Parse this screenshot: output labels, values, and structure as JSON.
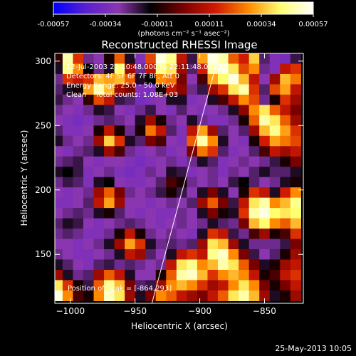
{
  "colorbar": {
    "ticks": [
      "-0.00057",
      "-0.00034",
      "-0.00011",
      "0.00011",
      "0.00034",
      "0.00057"
    ],
    "units": "(photons cm⁻² s⁻¹ asec⁻²)",
    "colors": [
      "#0000ff",
      "#5a1fd1",
      "#8a36b0",
      "#000000",
      "#7a0000",
      "#d21a00",
      "#ff8a00",
      "#ffff70",
      "#ffffff"
    ]
  },
  "chart_data": {
    "type": "heatmap",
    "title": "Reconstructed RHESSI Image",
    "xlabel": "Heliocentric X (arcsec)",
    "ylabel": "Heliocentric Y (arcsec)",
    "xlim": [
      -1012,
      -820
    ],
    "ylim": [
      112,
      306
    ],
    "x_ticks": [
      -1000,
      -950,
      -900,
      -850
    ],
    "y_ticks": [
      150,
      200,
      250,
      300
    ],
    "clim": [
      -0.00057,
      0.00057
    ],
    "annotations": [
      "12-Jul-2003 22:10:48.000 to 22:11:48.000",
      "Detectors: 4F 5F 6F 7F 8F, Att 0",
      "Energy Range: 25.0 - 50.0 keV",
      "Clean    Total counts: 1.08E+03"
    ],
    "peak_label": "Position of Peak = [-864,293]",
    "peak": [
      -864,
      293
    ],
    "limb_line": [
      [
        -937,
        112
      ],
      [
        -885,
        306
      ]
    ],
    "grid_x": [
      -1010,
      -1002,
      -994,
      -986,
      -978,
      -970,
      -962,
      -954,
      -946,
      -938,
      -930,
      -922,
      -914,
      -906,
      -898,
      -890,
      -882,
      -874,
      -866,
      -858,
      -850,
      -842,
      -834,
      -826
    ],
    "grid_y": [
      302,
      294,
      286,
      278,
      270,
      262,
      254,
      246,
      238,
      230,
      222,
      214,
      206,
      198,
      190,
      182,
      174,
      166,
      158,
      150,
      142,
      134,
      126,
      118
    ],
    "z": [
      [
        -0.15,
        0.85,
        0.3,
        -0.45,
        -0.5,
        -0.2,
        0.4,
        -0.3,
        -0.55,
        0.35,
        0.95,
        0.8,
        0.2,
        -0.35,
        0.55,
        0.95,
        0.85,
        0.4,
        0.25,
        0.65,
        -0.4,
        -0.55,
        -0.6,
        -0.35
      ],
      [
        -0.3,
        0.8,
        0.5,
        -0.25,
        -0.45,
        -0.3,
        0.75,
        0.1,
        -0.45,
        0.2,
        0.8,
        0.7,
        0.1,
        -0.4,
        0.25,
        0.85,
        0.95,
        0.7,
        0.35,
        0.5,
        -0.45,
        -0.55,
        0.2,
        0.3
      ],
      [
        -0.45,
        0.3,
        0.2,
        0.3,
        0.6,
        0.55,
        0.6,
        0.4,
        -0.3,
        -0.25,
        0.5,
        0.45,
        0.0,
        -0.5,
        -0.1,
        0.55,
        0.75,
        0.95,
        0.6,
        0.2,
        -0.5,
        0.1,
        0.6,
        0.45
      ],
      [
        -0.4,
        -0.3,
        -0.2,
        0.55,
        0.85,
        0.6,
        0.1,
        0.0,
        -0.55,
        -0.6,
        -0.2,
        0.2,
        0.05,
        -0.45,
        -0.35,
        0.1,
        0.3,
        0.7,
        0.85,
        0.3,
        -0.4,
        0.35,
        0.55,
        0.2
      ],
      [
        -0.35,
        -0.45,
        -0.5,
        -0.15,
        0.35,
        0.2,
        -0.35,
        -0.4,
        -0.6,
        -0.55,
        -0.5,
        -0.3,
        -0.3,
        -0.55,
        -0.5,
        -0.3,
        -0.1,
        0.2,
        0.5,
        0.35,
        -0.45,
        -0.2,
        0.3,
        0.1
      ],
      [
        -0.45,
        -0.5,
        -0.55,
        -0.45,
        -0.3,
        -0.35,
        -0.5,
        -0.55,
        -0.45,
        -0.35,
        -0.5,
        -0.55,
        -0.4,
        -0.5,
        -0.55,
        -0.5,
        -0.45,
        -0.3,
        0.05,
        0.5,
        0.7,
        0.4,
        0.2,
        0.0
      ],
      [
        -0.5,
        -0.55,
        -0.6,
        -0.55,
        -0.45,
        -0.4,
        -0.45,
        -0.5,
        -0.3,
        0.1,
        -0.2,
        -0.45,
        -0.5,
        -0.3,
        -0.45,
        -0.55,
        -0.55,
        -0.45,
        -0.2,
        0.4,
        0.85,
        0.7,
        0.4,
        0.1
      ],
      [
        -0.4,
        -0.55,
        -0.55,
        -0.5,
        -0.2,
        0.2,
        -0.2,
        -0.45,
        -0.2,
        0.45,
        0.2,
        -0.4,
        -0.55,
        0.2,
        0.55,
        0.1,
        -0.4,
        -0.5,
        -0.4,
        0.1,
        0.6,
        0.8,
        0.55,
        0.3
      ],
      [
        -0.3,
        -0.45,
        -0.5,
        -0.45,
        0.1,
        0.65,
        0.3,
        -0.3,
        -0.4,
        0.0,
        -0.1,
        -0.5,
        -0.55,
        0.4,
        0.85,
        0.5,
        -0.3,
        -0.5,
        -0.55,
        -0.2,
        0.25,
        0.55,
        0.45,
        0.35
      ],
      [
        -0.5,
        -0.55,
        -0.45,
        -0.4,
        -0.3,
        0.1,
        -0.1,
        -0.45,
        -0.55,
        -0.5,
        -0.45,
        -0.55,
        -0.5,
        0.0,
        0.45,
        0.3,
        -0.4,
        -0.55,
        -0.5,
        -0.4,
        -0.1,
        0.2,
        0.1,
        0.2
      ],
      [
        -0.45,
        -0.4,
        -0.35,
        -0.5,
        -0.55,
        -0.5,
        -0.5,
        -0.55,
        -0.6,
        -0.55,
        -0.5,
        -0.45,
        -0.55,
        -0.45,
        -0.3,
        -0.4,
        -0.55,
        -0.5,
        -0.45,
        -0.5,
        -0.45,
        -0.35,
        -0.2,
        0.0
      ],
      [
        -0.3,
        -0.25,
        -0.35,
        -0.55,
        -0.5,
        -0.45,
        -0.55,
        -0.6,
        -0.55,
        -0.45,
        -0.5,
        -0.3,
        -0.35,
        -0.55,
        -0.5,
        -0.45,
        -0.55,
        -0.45,
        -0.5,
        -0.4,
        -0.3,
        -0.4,
        -0.4,
        -0.3
      ],
      [
        -0.45,
        -0.35,
        -0.4,
        -0.55,
        -0.3,
        -0.25,
        -0.5,
        -0.55,
        -0.55,
        -0.5,
        -0.4,
        -0.1,
        -0.2,
        -0.45,
        -0.5,
        -0.45,
        -0.5,
        -0.35,
        -0.25,
        -0.4,
        -0.5,
        -0.45,
        -0.3,
        -0.2
      ],
      [
        -0.5,
        -0.55,
        -0.5,
        -0.45,
        0.1,
        0.4,
        0.0,
        -0.45,
        -0.5,
        -0.45,
        -0.35,
        -0.2,
        -0.35,
        -0.5,
        -0.3,
        0.0,
        -0.3,
        -0.5,
        -0.2,
        0.3,
        0.2,
        -0.3,
        0.25,
        0.5
      ],
      [
        -0.55,
        -0.55,
        -0.5,
        -0.4,
        0.2,
        0.55,
        0.1,
        -0.5,
        -0.5,
        -0.55,
        -0.5,
        -0.45,
        -0.5,
        -0.4,
        0.1,
        0.4,
        0.0,
        -0.35,
        0.2,
        0.7,
        0.85,
        0.5,
        0.6,
        0.8
      ],
      [
        -0.5,
        -0.45,
        -0.4,
        -0.45,
        -0.3,
        -0.2,
        -0.4,
        -0.5,
        -0.55,
        -0.5,
        -0.55,
        -0.55,
        -0.45,
        -0.5,
        -0.3,
        0.0,
        -0.2,
        -0.3,
        0.3,
        0.85,
        0.95,
        0.75,
        0.7,
        0.75
      ],
      [
        -0.4,
        -0.3,
        -0.35,
        -0.5,
        -0.55,
        -0.5,
        -0.45,
        -0.4,
        -0.45,
        -0.5,
        -0.55,
        -0.5,
        -0.45,
        -0.5,
        -0.45,
        -0.3,
        -0.4,
        -0.45,
        0.0,
        0.6,
        0.75,
        0.5,
        0.4,
        0.6
      ],
      [
        -0.45,
        -0.4,
        -0.45,
        -0.55,
        -0.55,
        -0.45,
        -0.2,
        0.2,
        -0.2,
        -0.45,
        -0.5,
        -0.45,
        -0.5,
        -0.55,
        -0.3,
        0.3,
        0.2,
        -0.35,
        -0.45,
        -0.1,
        0.1,
        -0.2,
        -0.1,
        0.3
      ],
      [
        -0.5,
        -0.5,
        -0.55,
        -0.5,
        -0.45,
        -0.3,
        0.1,
        0.55,
        0.3,
        -0.3,
        -0.45,
        -0.4,
        -0.45,
        -0.4,
        0.1,
        0.7,
        0.6,
        0.1,
        -0.3,
        -0.45,
        -0.45,
        -0.45,
        -0.35,
        0.0
      ],
      [
        -0.45,
        -0.5,
        -0.55,
        -0.55,
        -0.5,
        -0.45,
        -0.3,
        0.2,
        0.1,
        -0.4,
        -0.5,
        -0.3,
        0.2,
        0.3,
        0.2,
        0.8,
        0.9,
        0.5,
        0.0,
        -0.35,
        -0.5,
        -0.4,
        -0.2,
        0.1
      ],
      [
        -0.3,
        -0.4,
        -0.5,
        -0.55,
        -0.4,
        -0.35,
        -0.45,
        -0.4,
        -0.45,
        -0.5,
        -0.45,
        0.2,
        0.7,
        0.8,
        0.5,
        0.6,
        0.85,
        0.7,
        0.4,
        0.0,
        -0.3,
        -0.2,
        0.1,
        0.2
      ],
      [
        0.1,
        -0.3,
        -0.45,
        -0.4,
        0.1,
        0.4,
        0.2,
        -0.3,
        -0.5,
        -0.5,
        -0.2,
        0.4,
        0.85,
        0.9,
        0.6,
        0.3,
        0.5,
        0.6,
        0.5,
        0.2,
        -0.2,
        -0.1,
        0.2,
        0.3
      ],
      [
        0.7,
        0.3,
        -0.2,
        -0.35,
        0.4,
        0.8,
        0.6,
        0.0,
        -0.4,
        -0.35,
        0.1,
        0.5,
        0.6,
        0.5,
        0.3,
        0.1,
        0.2,
        0.5,
        0.7,
        0.5,
        0.0,
        -0.2,
        0.0,
        0.2
      ],
      [
        0.95,
        0.5,
        -0.1,
        -0.2,
        0.5,
        0.9,
        0.7,
        0.1,
        -0.3,
        0.0,
        0.5,
        0.4,
        0.2,
        0.1,
        0.0,
        0.2,
        0.4,
        0.7,
        0.85,
        0.6,
        0.1,
        -0.3,
        -0.2,
        0.1
      ]
    ]
  },
  "footer": {
    "date": "25-May-2013 10:05"
  }
}
